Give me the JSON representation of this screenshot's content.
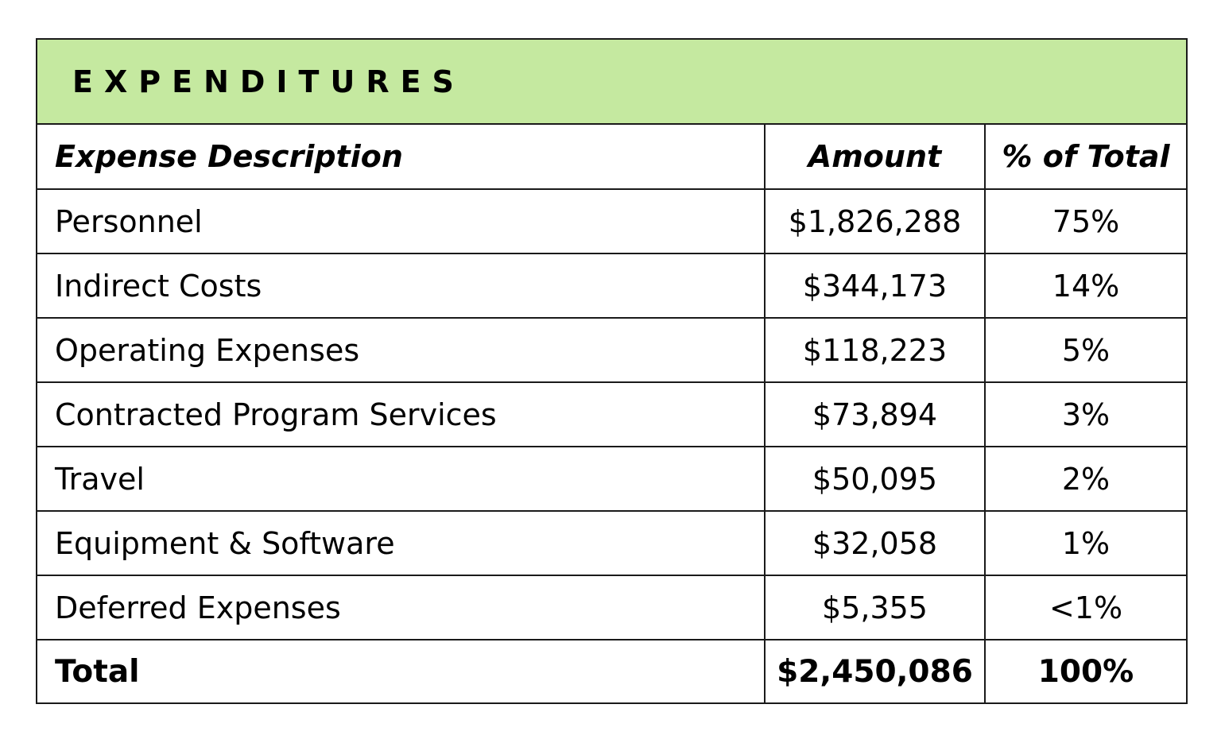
{
  "table": {
    "title": "EXPENDITURES",
    "header_bg": "#c5e9a0",
    "columns": {
      "description": "Expense Description",
      "amount": "Amount",
      "percent": "% of Total"
    },
    "rows": [
      {
        "description": "Personnel",
        "amount": "$1,826,288",
        "percent": "75%"
      },
      {
        "description": "Indirect Costs",
        "amount": "$344,173",
        "percent": "14%"
      },
      {
        "description": "Operating Expenses",
        "amount": "$118,223",
        "percent": "5%"
      },
      {
        "description": "Contracted Program Services",
        "amount": "$73,894",
        "percent": "3%"
      },
      {
        "description": "Travel",
        "amount": "$50,095",
        "percent": "2%"
      },
      {
        "description": "Equipment & Software",
        "amount": "$32,058",
        "percent": "1%"
      },
      {
        "description": "Deferred Expenses",
        "amount": "$5,355",
        "percent": "<1%"
      }
    ],
    "total": {
      "description": "Total",
      "amount": "$2,450,086",
      "percent": "100%"
    }
  }
}
